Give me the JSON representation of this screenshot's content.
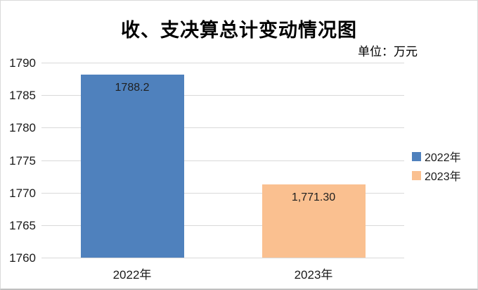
{
  "chart_data": {
    "type": "bar",
    "title": "收、支决算总计变动情况图",
    "unit_note": "单位：万元",
    "categories": [
      "2022年",
      "2023年"
    ],
    "series": [
      {
        "name": "2022年",
        "value": 1788.2,
        "value_label": "1788.2",
        "color": "#4F81BD"
      },
      {
        "name": "2023年",
        "value": 1771.3,
        "value_label": "1,771.30",
        "color": "#FAC090"
      }
    ],
    "ylim": [
      1760,
      1790
    ],
    "ytick_step": 5,
    "yticks": [
      1760,
      1765,
      1770,
      1775,
      1780,
      1785,
      1790
    ],
    "grid": true,
    "gridline_color": "#D9D9D9",
    "legend_position": "right"
  }
}
